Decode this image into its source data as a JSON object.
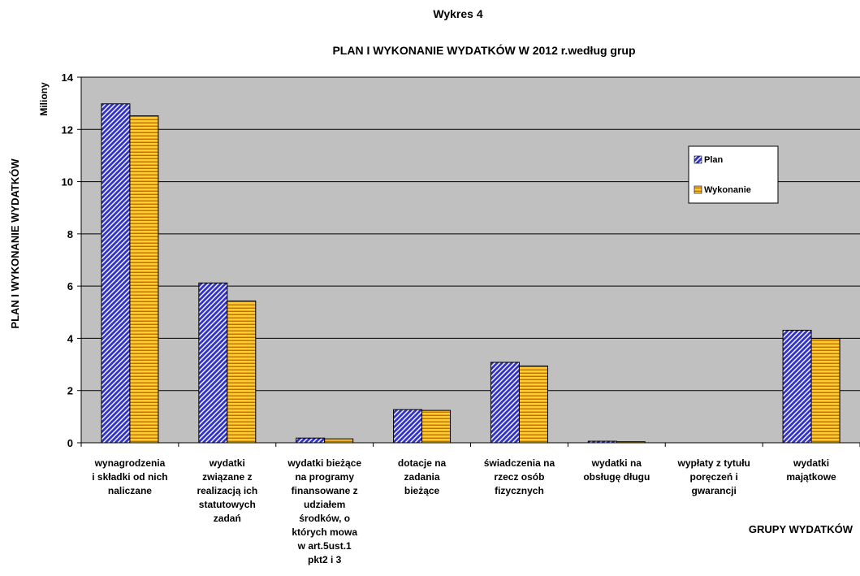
{
  "chart_data": {
    "type": "bar",
    "title": "Wykres 4",
    "subtitle": "PLAN I WYKONANIE WYDATKÓW W 2012 r.według grup",
    "xlabel": "GRUPY WYDATKÓW",
    "ylabel": "PLAN I WYKONANIE WYDATKÓW",
    "units_label": "Miliony",
    "ylim": [
      0,
      14
    ],
    "yticks": [
      "0",
      "2",
      "4",
      "6",
      "8",
      "10",
      "12",
      "14"
    ],
    "grid": true,
    "legend_position": "right",
    "categories": [
      "wynagrodzenia i składki od nich naliczane",
      "wydatki związane z realizacją ich statutowych zadań",
      "wydatki bieżące na programy finansowane z udziałem środków, o których mowa w art.5ust.1 pkt2 i 3",
      "dotacje na zadania bieżące",
      "świadczenia na rzecz osób fizycznych",
      "wydatki na obsługę długu",
      "wypłaty z tytułu poręczeń i gwarancji",
      "wydatki majątkowe"
    ],
    "category_lines": [
      [
        "wynagrodzenia",
        "i składki od nich",
        "naliczane"
      ],
      [
        "wydatki",
        "związane z",
        "realizacją ich",
        "statutowych",
        "zadań"
      ],
      [
        "wydatki bieżące",
        "na programy",
        "finansowane z",
        "udziałem",
        "środków, o",
        "których mowa",
        "w art.5ust.1",
        "pkt2 i 3"
      ],
      [
        "dotacje na",
        "zadania",
        "bieżące"
      ],
      [
        "świadczenia na",
        "rzecz osób",
        "fizycznych"
      ],
      [
        "wydatki na",
        "obsługę długu"
      ],
      [
        "wypłaty z tytułu",
        "poręczeń i",
        "gwarancji"
      ],
      [
        "wydatki",
        "majątkowe"
      ]
    ],
    "series": [
      {
        "name": "Plan",
        "values": [
          12.98,
          6.12,
          0.18,
          1.27,
          3.08,
          0.06,
          0,
          4.31
        ]
      },
      {
        "name": "Wykonanie",
        "values": [
          12.52,
          5.43,
          0.15,
          1.24,
          2.94,
          0.04,
          0,
          3.99
        ]
      }
    ],
    "colors": {
      "plot_bg": "#c0c0c0",
      "plan_fill": "#3333cc",
      "plan_stripe": "#ffffff",
      "wykonanie_fill": "#ffcc33",
      "wykonanie_stripe": "#cc6600",
      "grid": "#000000"
    }
  }
}
